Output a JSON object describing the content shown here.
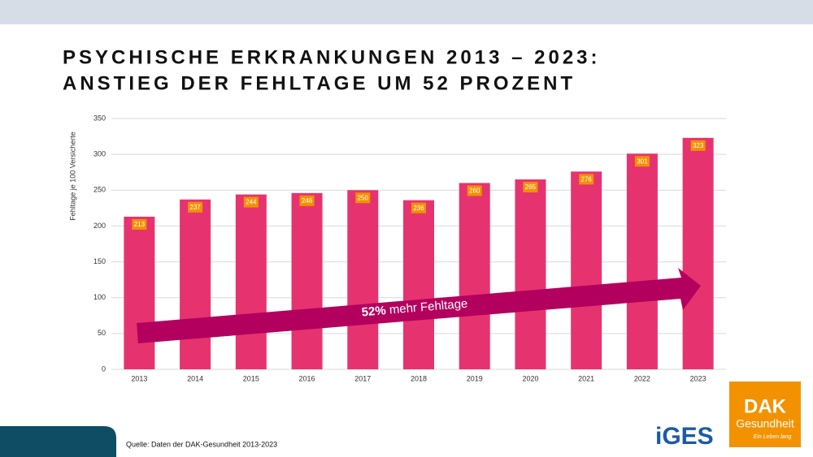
{
  "chart_data": {
    "type": "bar",
    "title": [
      "PSYCHISCHE ERKRANKUNGEN 2013 – 2023:",
      "ANSTIEG DER FEHLTAGE UM 52 PROZENT"
    ],
    "y_label": "Fehltage je 100 Versicherte",
    "categories": [
      "2013",
      "2014",
      "2015",
      "2016",
      "2017",
      "2018",
      "2019",
      "2020",
      "2021",
      "2022",
      "2023"
    ],
    "values": [
      213,
      237,
      244,
      246,
      250,
      236,
      260,
      265,
      276,
      301,
      323
    ],
    "color": "#e6336f",
    "label_color": "#f29100",
    "ylim": [
      0,
      350
    ],
    "yticks": [
      0,
      50,
      100,
      150,
      200,
      250,
      300,
      350
    ],
    "grid": true,
    "annotation": {
      "bold": "52%",
      "text": "mehr Fehltage"
    }
  },
  "source": "Quelle:  Daten  der  DAK-Gesundheit  2013-2023",
  "logos": {
    "iges": "iGES",
    "dak": "DAK",
    "dak_sub": "Gesundheit",
    "dak_claim": "Ein Leben lang"
  }
}
